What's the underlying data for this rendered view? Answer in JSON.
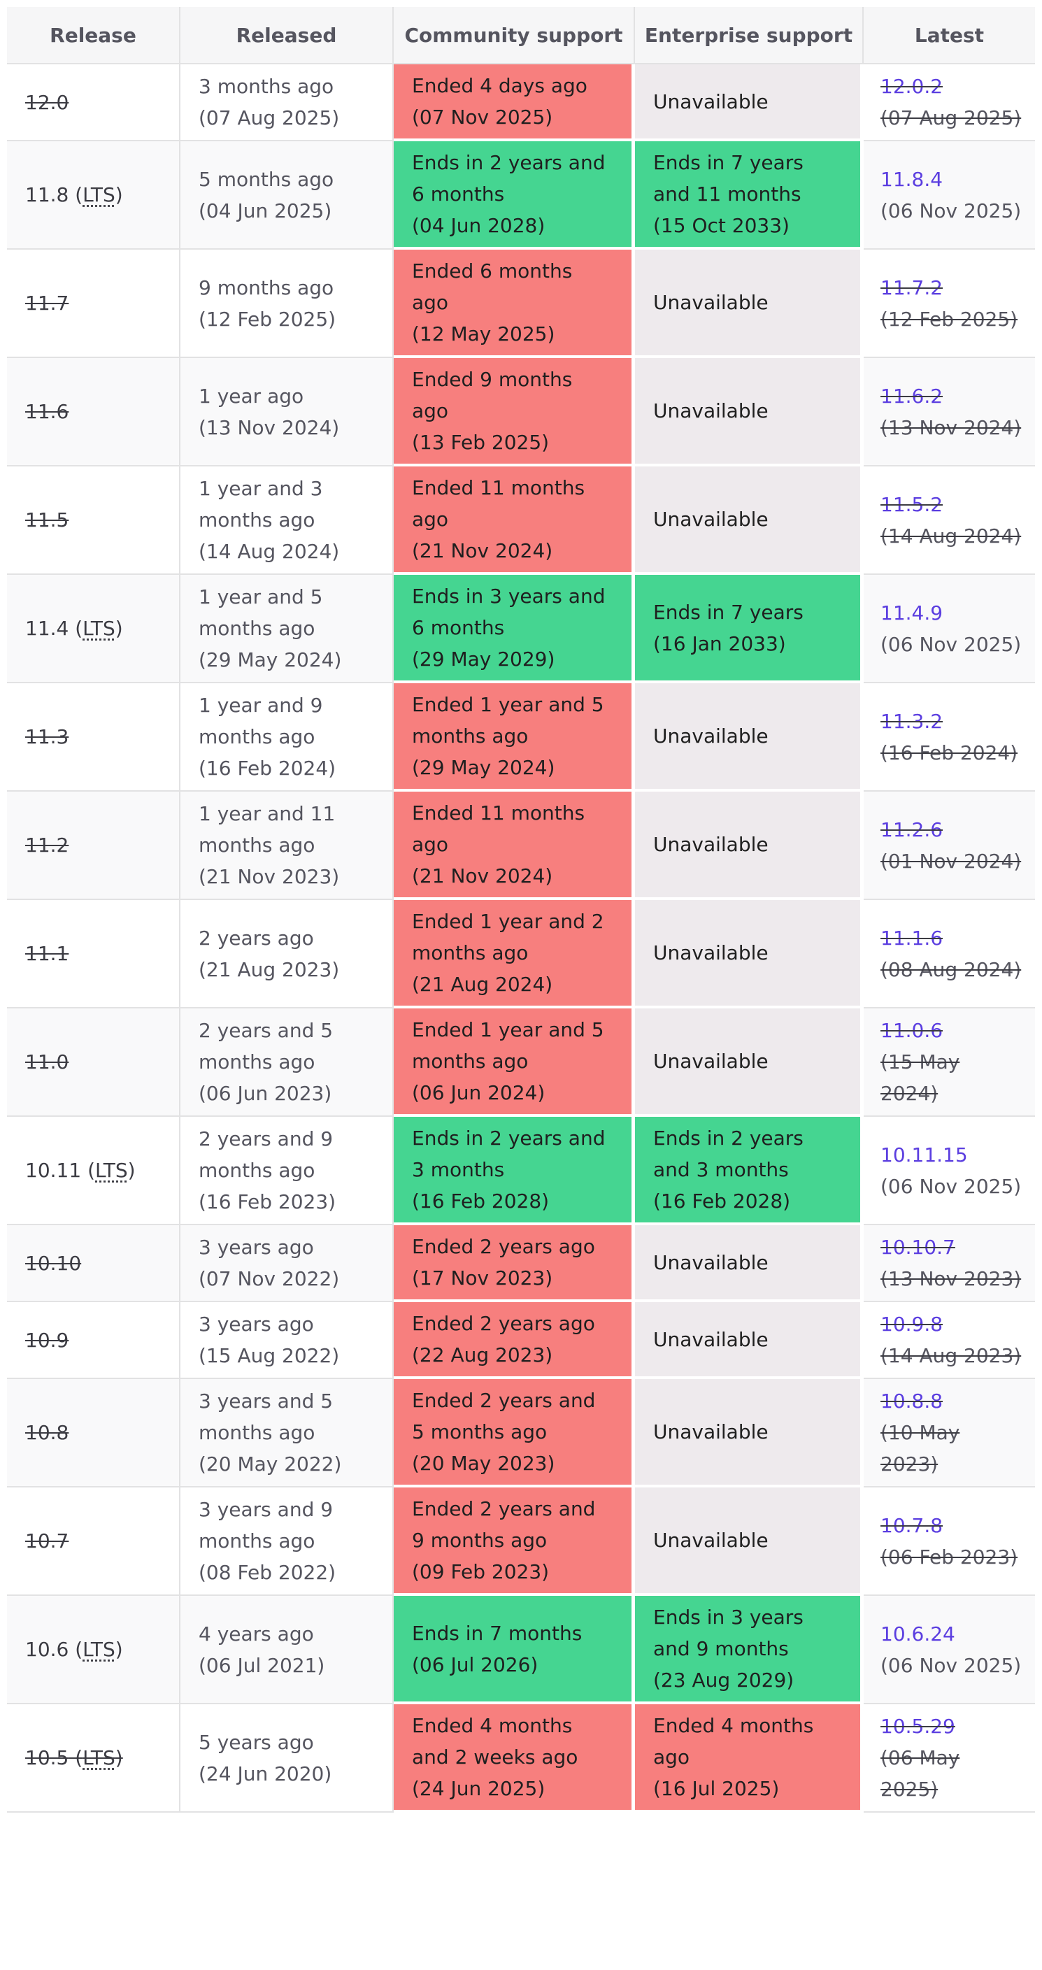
{
  "headers": [
    "Release",
    "Released",
    "Community support",
    "Enterprise support",
    "Latest"
  ],
  "rows": [
    {
      "release": "12.0",
      "lts": "",
      "eol": true,
      "released_ago": "3 months ago",
      "released_date": "(07 Aug 2025)",
      "community_status": "ended",
      "community_text": "Ended 4 days ago",
      "community_date": "(07 Nov 2025)",
      "enterprise_status": "unavailable",
      "enterprise_text": "Unavailable",
      "enterprise_date": "",
      "latest": "12.0.2",
      "latest_date": "(07 Aug 2025)"
    },
    {
      "release": "11.8",
      "lts": "LTS",
      "eol": false,
      "released_ago": "5 months ago",
      "released_date": "(04 Jun 2025)",
      "community_status": "ends",
      "community_text": "Ends in 2 years and 6 months",
      "community_date": "(04 Jun 2028)",
      "enterprise_status": "ends",
      "enterprise_text": "Ends in 7 years and 11 months",
      "enterprise_date": "(15 Oct 2033)",
      "latest": "11.8.4",
      "latest_date": "(06 Nov 2025)"
    },
    {
      "release": "11.7",
      "lts": "",
      "eol": true,
      "released_ago": "9 months ago",
      "released_date": "(12 Feb 2025)",
      "community_status": "ended",
      "community_text": "Ended 6 months ago",
      "community_date": "(12 May 2025)",
      "enterprise_status": "unavailable",
      "enterprise_text": "Unavailable",
      "enterprise_date": "",
      "latest": "11.7.2",
      "latest_date": "(12 Feb 2025)"
    },
    {
      "release": "11.6",
      "lts": "",
      "eol": true,
      "released_ago": "1 year ago",
      "released_date": "(13 Nov 2024)",
      "community_status": "ended",
      "community_text": "Ended 9 months ago",
      "community_date": "(13 Feb 2025)",
      "enterprise_status": "unavailable",
      "enterprise_text": "Unavailable",
      "enterprise_date": "",
      "latest": "11.6.2",
      "latest_date": "(13 Nov 2024)"
    },
    {
      "release": "11.5",
      "lts": "",
      "eol": true,
      "released_ago": "1 year and 3 months ago",
      "released_date": "(14 Aug 2024)",
      "community_status": "ended",
      "community_text": "Ended 11 months ago",
      "community_date": "(21 Nov 2024)",
      "enterprise_status": "unavailable",
      "enterprise_text": "Unavailable",
      "enterprise_date": "",
      "latest": "11.5.2",
      "latest_date": "(14 Aug 2024)"
    },
    {
      "release": "11.4",
      "lts": "LTS",
      "eol": false,
      "released_ago": "1 year and 5 months ago",
      "released_date": "(29 May 2024)",
      "community_status": "ends",
      "community_text": "Ends in 3 years and 6 months",
      "community_date": "(29 May 2029)",
      "enterprise_status": "ends",
      "enterprise_text": "Ends in 7 years",
      "enterprise_date": "(16 Jan 2033)",
      "latest": "11.4.9",
      "latest_date": "(06 Nov 2025)"
    },
    {
      "release": "11.3",
      "lts": "",
      "eol": true,
      "released_ago": "1 year and 9 months ago",
      "released_date": "(16 Feb 2024)",
      "community_status": "ended",
      "community_text": "Ended 1 year and 5 months ago",
      "community_date": "(29 May 2024)",
      "enterprise_status": "unavailable",
      "enterprise_text": "Unavailable",
      "enterprise_date": "",
      "latest": "11.3.2",
      "latest_date": "(16 Feb 2024)"
    },
    {
      "release": "11.2",
      "lts": "",
      "eol": true,
      "released_ago": "1 year and 11 months ago",
      "released_date": "(21 Nov 2023)",
      "community_status": "ended",
      "community_text": "Ended 11 months ago",
      "community_date": "(21 Nov 2024)",
      "enterprise_status": "unavailable",
      "enterprise_text": "Unavailable",
      "enterprise_date": "",
      "latest": "11.2.6",
      "latest_date": "(01 Nov 2024)"
    },
    {
      "release": "11.1",
      "lts": "",
      "eol": true,
      "released_ago": "2 years ago",
      "released_date": "(21 Aug 2023)",
      "community_status": "ended",
      "community_text": "Ended 1 year and 2 months ago",
      "community_date": "(21 Aug 2024)",
      "enterprise_status": "unavailable",
      "enterprise_text": "Unavailable",
      "enterprise_date": "",
      "latest": "11.1.6",
      "latest_date": "(08 Aug 2024)"
    },
    {
      "release": "11.0",
      "lts": "",
      "eol": true,
      "released_ago": "2 years and 5 months ago",
      "released_date": "(06 Jun 2023)",
      "community_status": "ended",
      "community_text": "Ended 1 year and 5 months ago",
      "community_date": "(06 Jun 2024)",
      "enterprise_status": "unavailable",
      "enterprise_text": "Unavailable",
      "enterprise_date": "",
      "latest": "11.0.6",
      "latest_date": "(15 May 2024)"
    },
    {
      "release": "10.11",
      "lts": "LTS",
      "eol": false,
      "released_ago": "2 years and 9 months ago",
      "released_date": "(16 Feb 2023)",
      "community_status": "ends",
      "community_text": "Ends in 2 years and 3 months",
      "community_date": "(16 Feb 2028)",
      "enterprise_status": "ends",
      "enterprise_text": "Ends in 2 years and 3 months",
      "enterprise_date": "(16 Feb 2028)",
      "latest": "10.11.15",
      "latest_date": "(06 Nov 2025)"
    },
    {
      "release": "10.10",
      "lts": "",
      "eol": true,
      "released_ago": "3 years ago",
      "released_date": "(07 Nov 2022)",
      "community_status": "ended",
      "community_text": "Ended 2 years ago",
      "community_date": "(17 Nov 2023)",
      "enterprise_status": "unavailable",
      "enterprise_text": "Unavailable",
      "enterprise_date": "",
      "latest": "10.10.7",
      "latest_date": "(13 Nov 2023)"
    },
    {
      "release": "10.9",
      "lts": "",
      "eol": true,
      "released_ago": "3 years ago",
      "released_date": "(15 Aug 2022)",
      "community_status": "ended",
      "community_text": "Ended 2 years ago",
      "community_date": "(22 Aug 2023)",
      "enterprise_status": "unavailable",
      "enterprise_text": "Unavailable",
      "enterprise_date": "",
      "latest": "10.9.8",
      "latest_date": "(14 Aug 2023)"
    },
    {
      "release": "10.8",
      "lts": "",
      "eol": true,
      "released_ago": "3 years and 5 months ago",
      "released_date": "(20 May 2022)",
      "community_status": "ended",
      "community_text": "Ended 2 years and 5 months ago",
      "community_date": "(20 May 2023)",
      "enterprise_status": "unavailable",
      "enterprise_text": "Unavailable",
      "enterprise_date": "",
      "latest": "10.8.8",
      "latest_date": "(10 May 2023)"
    },
    {
      "release": "10.7",
      "lts": "",
      "eol": true,
      "released_ago": "3 years and 9 months ago",
      "released_date": "(08 Feb 2022)",
      "community_status": "ended",
      "community_text": "Ended 2 years and 9 months ago",
      "community_date": "(09 Feb 2023)",
      "enterprise_status": "unavailable",
      "enterprise_text": "Unavailable",
      "enterprise_date": "",
      "latest": "10.7.8",
      "latest_date": "(06 Feb 2023)"
    },
    {
      "release": "10.6",
      "lts": "LTS",
      "eol": false,
      "released_ago": "4 years ago",
      "released_date": "(06 Jul 2021)",
      "community_status": "ends",
      "community_text": "Ends in 7 months",
      "community_date": "(06 Jul 2026)",
      "enterprise_status": "ends",
      "enterprise_text": "Ends in 3 years and 9 months",
      "enterprise_date": "(23 Aug 2029)",
      "latest": "10.6.24",
      "latest_date": "(06 Nov 2025)"
    },
    {
      "release": "10.5",
      "lts": "LTS",
      "eol": true,
      "released_ago": "5 years ago",
      "released_date": "(24 Jun 2020)",
      "community_status": "ended",
      "community_text": "Ended 4 months and 2 weeks ago",
      "community_date": "(24 Jun 2025)",
      "enterprise_status": "ended",
      "enterprise_text": "Ended 4 months ago",
      "enterprise_date": "(16 Jul 2025)",
      "latest": "10.5.29",
      "latest_date": "(06 May 2025)"
    }
  ],
  "colors": {
    "ended": "#f77f7e",
    "ends": "#45d591",
    "unavailable": "#eeeaed",
    "link": "#5b3ee0"
  }
}
